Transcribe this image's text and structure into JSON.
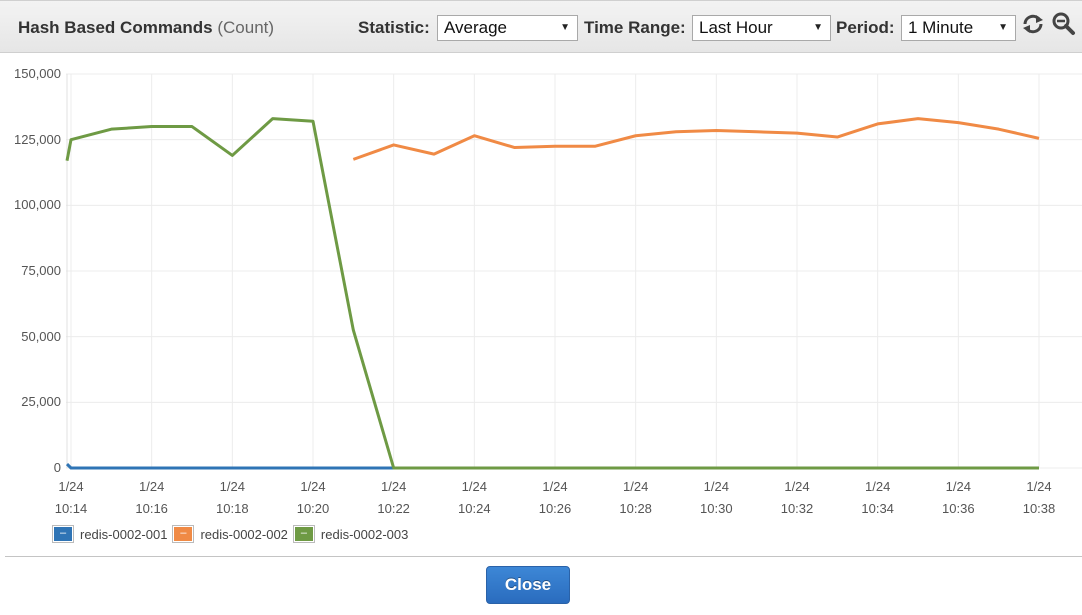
{
  "header": {
    "title": "Hash Based Commands",
    "unit": "(Count)",
    "statistic_label": "Statistic:",
    "statistic_value": "Average",
    "time_range_label": "Time Range:",
    "time_range_value": "Last Hour",
    "period_label": "Period:",
    "period_value": "1 Minute",
    "icons": [
      "refresh-icon",
      "zoom-out-icon"
    ]
  },
  "footer": {
    "close_label": "Close"
  },
  "colors": {
    "redis-0002-001": "#2f74b5",
    "redis-0002-002": "#f08a45",
    "redis-0002-003": "#6e9a44",
    "grid": "#ececec"
  },
  "chart_data": {
    "type": "line",
    "title": "Hash Based Commands (Count)",
    "xlabel": "",
    "ylabel": "",
    "ylim": [
      0,
      150000
    ],
    "y_ticks": [
      "150,000",
      "125,000",
      "100,000",
      "75,000",
      "50,000",
      "25,000",
      "0"
    ],
    "x_ticks": [
      {
        "date": "1/24",
        "time": "10:14"
      },
      {
        "date": "1/24",
        "time": "10:16"
      },
      {
        "date": "1/24",
        "time": "10:18"
      },
      {
        "date": "1/24",
        "time": "10:20"
      },
      {
        "date": "1/24",
        "time": "10:22"
      },
      {
        "date": "1/24",
        "time": "10:24"
      },
      {
        "date": "1/24",
        "time": "10:26"
      },
      {
        "date": "1/24",
        "time": "10:28"
      },
      {
        "date": "1/24",
        "time": "10:30"
      },
      {
        "date": "1/24",
        "time": "10:32"
      },
      {
        "date": "1/24",
        "time": "10:34"
      },
      {
        "date": "1/24",
        "time": "10:36"
      },
      {
        "date": "1/24",
        "time": "10:38"
      }
    ],
    "grid": true,
    "legend_position": "bottom-left",
    "x": [
      "10:14",
      "10:15",
      "10:16",
      "10:17",
      "10:18",
      "10:19",
      "10:20",
      "10:21",
      "10:22",
      "10:23",
      "10:24",
      "10:25",
      "10:26",
      "10:27",
      "10:28",
      "10:29",
      "10:30",
      "10:31",
      "10:32",
      "10:33",
      "10:34",
      "10:35",
      "10:36",
      "10:37",
      "10:38"
    ],
    "series": [
      {
        "name": "redis-0002-001",
        "color": "#2f74b5",
        "start_value": 1500,
        "values": [
          0,
          0,
          0,
          0,
          0,
          0,
          0,
          0,
          0,
          null,
          null,
          null,
          null,
          null,
          null,
          null,
          null,
          null,
          null,
          null,
          null,
          null,
          null,
          null,
          null
        ]
      },
      {
        "name": "redis-0002-002",
        "color": "#f08a45",
        "values": [
          null,
          null,
          null,
          null,
          null,
          null,
          null,
          117500,
          123000,
          119500,
          126500,
          122000,
          122500,
          122500,
          126500,
          128000,
          128500,
          128000,
          127500,
          126000,
          131000,
          133000,
          131500,
          129000,
          125500
        ]
      },
      {
        "name": "redis-0002-003",
        "color": "#6e9a44",
        "start_value": 117000,
        "values": [
          125000,
          129000,
          130000,
          130000,
          119000,
          133000,
          132000,
          52500,
          0,
          0,
          0,
          0,
          0,
          0,
          0,
          0,
          0,
          0,
          0,
          0,
          0,
          0,
          0,
          0,
          0
        ]
      }
    ]
  }
}
